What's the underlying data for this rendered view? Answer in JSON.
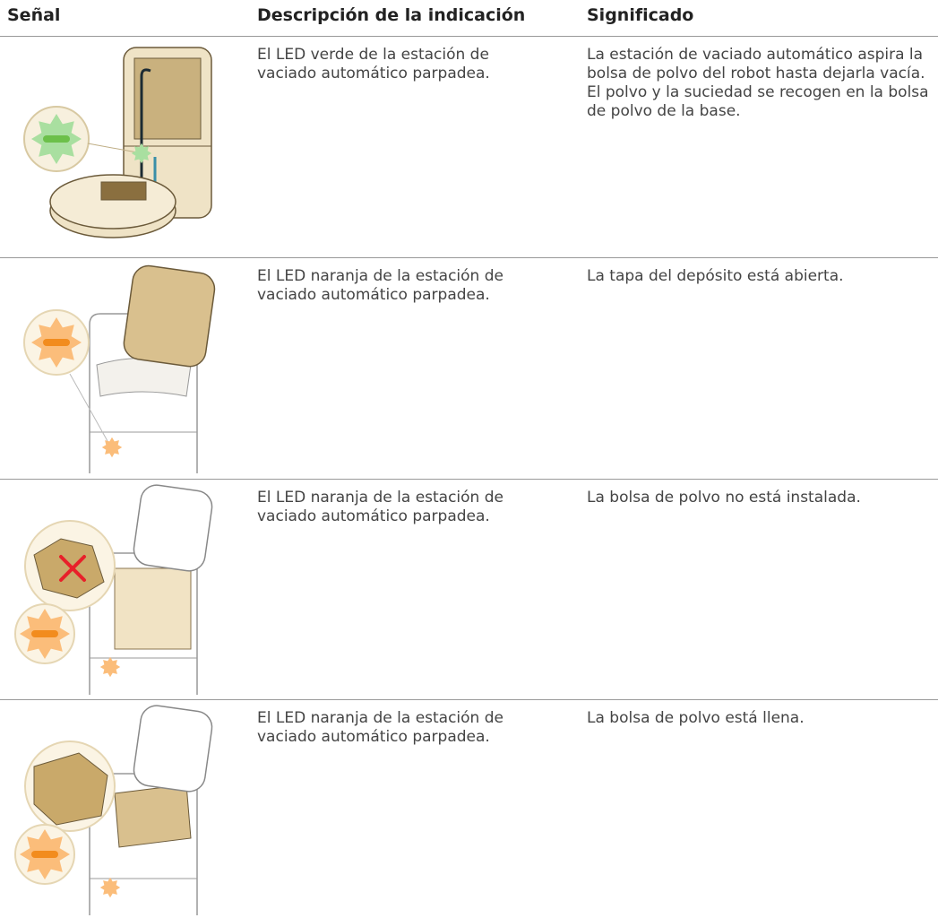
{
  "table": {
    "header": [
      "Señal",
      "Descripción de la indicación",
      "Significado"
    ],
    "rows": [
      [
        "El LED verde de la estación de vaciado automático parpadea.",
        "La estación de vaciado automático aspira la bolsa de polvo del robot hasta dejarla vacía. El polvo y la suciedad se recogen en la bolsa de polvo de la base."
      ],
      [
        "El LED naranja de la estación de vaciado automático parpadea.",
        "La tapa del depósito está abierta."
      ],
      [
        "El LED naranja de la estación de vaciado automático parpadea.",
        "La bolsa de polvo no está instalada."
      ],
      [
        "El LED naranja de la estación de vaciado automático parpadea.",
        "La bolsa de polvo está llena."
      ]
    ]
  }
}
